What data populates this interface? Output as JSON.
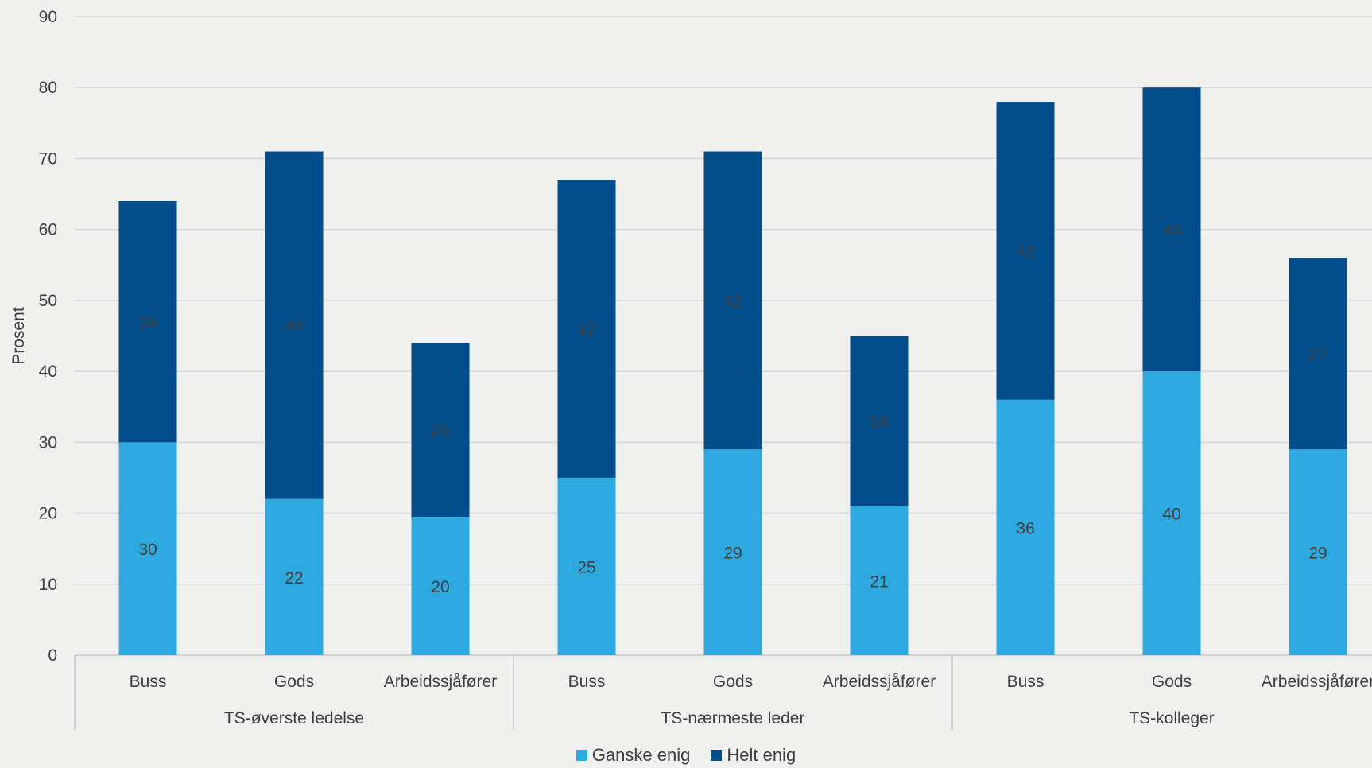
{
  "chart_data": {
    "type": "bar",
    "stacked": true,
    "title": "",
    "ylabel": "Prosent",
    "ylim": [
      0,
      90
    ],
    "yticks": [
      0,
      10,
      20,
      30,
      40,
      50,
      60,
      70,
      80,
      90
    ],
    "grid": true,
    "legend_position": "bottom",
    "groups": [
      {
        "label": "TS-øverste ledelse",
        "categories": [
          "Buss",
          "Gods",
          "Arbeidssjåfører"
        ]
      },
      {
        "label": "TS-nærmeste leder",
        "categories": [
          "Buss",
          "Gods",
          "Arbeidssjåfører"
        ]
      },
      {
        "label": "TS-kolleger",
        "categories": [
          "Buss",
          "Gods",
          "Arbeidssjåfører"
        ]
      }
    ],
    "series": [
      {
        "name": "Ganske enig",
        "color": "#2ea9df",
        "values": [
          30,
          22,
          20,
          25,
          29,
          21,
          36,
          40,
          29
        ],
        "heights": [
          30,
          22,
          19.5,
          25,
          29,
          21,
          36,
          40,
          29
        ]
      },
      {
        "name": "Helt enig",
        "color": "#004e8c",
        "values": [
          34,
          49,
          25,
          42,
          42,
          24,
          42,
          40,
          27
        ],
        "heights": [
          34,
          49,
          24.5,
          42,
          42,
          24,
          42,
          40,
          27
        ]
      }
    ]
  }
}
